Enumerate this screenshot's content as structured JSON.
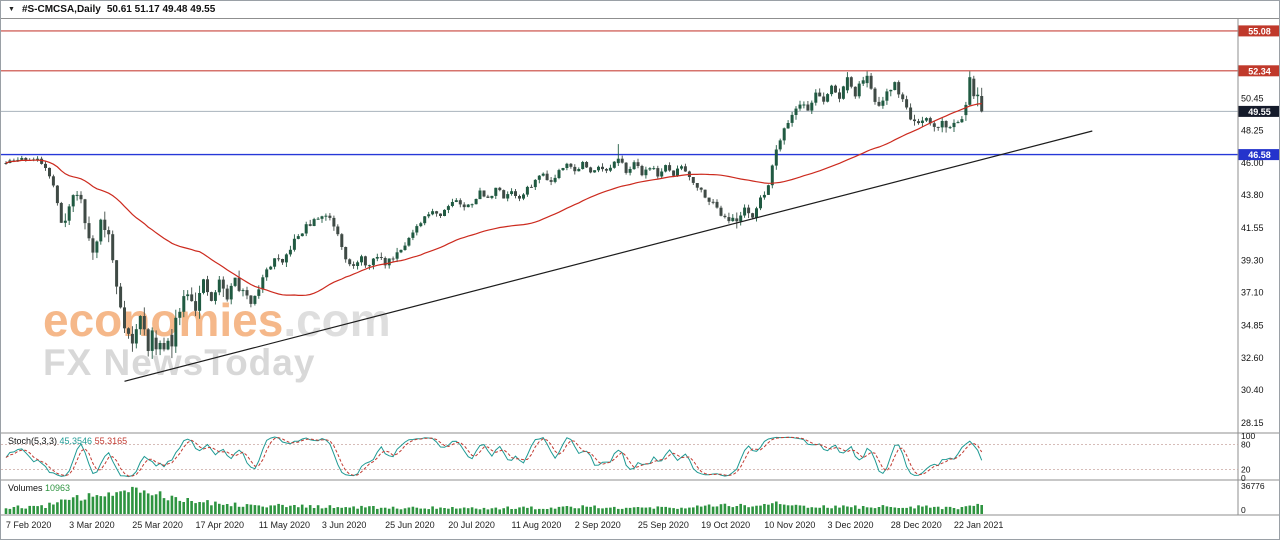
{
  "window": {
    "dropdown_icon": "▼",
    "title_symbol": "#S-CMCSA,Daily",
    "title_ohlc": "50.61 51.17 49.48 49.55"
  },
  "watermark": {
    "brand": "economies",
    "brand_suffix": ".com",
    "tagline": "FX NewsToday"
  },
  "chart_data": {
    "type": "candlestick",
    "symbol": "#S-CMCSA",
    "timeframe": "Daily",
    "ohlc_display": {
      "open": 50.61,
      "high": 51.17,
      "low": 49.48,
      "close": 49.55
    },
    "y_axis": {
      "ticks": [
        50.45,
        48.25,
        46.0,
        43.8,
        41.55,
        39.3,
        37.1,
        34.85,
        32.6,
        30.4,
        28.15
      ],
      "price_min": 27.45,
      "price_max": 55.9
    },
    "price_tags": [
      {
        "value": "55.08",
        "price": 55.08,
        "bg": "#c0392b"
      },
      {
        "value": "52.34",
        "price": 52.34,
        "bg": "#c0392b"
      },
      {
        "value": "49.55",
        "price": 49.55,
        "bg": "#141a2a"
      },
      {
        "value": "46.58",
        "price": 46.58,
        "bg": "#2433cc"
      }
    ],
    "hlines": [
      {
        "price": 55.08,
        "color": "#c8453c",
        "w": 1.1
      },
      {
        "price": 52.34,
        "color": "#c8453c",
        "w": 1.1
      },
      {
        "price": 49.55,
        "color": "#a8b2bc",
        "w": 1
      },
      {
        "price": 46.58,
        "color": "#2638d8",
        "w": 1.4
      }
    ],
    "trendline": {
      "from_bar": 30,
      "from_price": 31.0,
      "to_bar": 275,
      "to_price": 48.2,
      "color": "#1c1c1c"
    },
    "ma": {
      "period": 50,
      "color": "#cc2a1e"
    },
    "colors": {
      "bull": "#205a42",
      "bear": "#3f4a45"
    },
    "candles": {
      "count": 248,
      "seed": 11,
      "path": [
        [
          0,
          46.0
        ],
        [
          4,
          46.3
        ],
        [
          8,
          46.2
        ],
        [
          10,
          45.8
        ],
        [
          12,
          44.5
        ],
        [
          14,
          41.8
        ],
        [
          16,
          43.0
        ],
        [
          18,
          44.2
        ],
        [
          20,
          42.0
        ],
        [
          22,
          39.8
        ],
        [
          24,
          42.0
        ],
        [
          26,
          41.0
        ],
        [
          28,
          37.5
        ],
        [
          30,
          35.0
        ],
        [
          32,
          33.5
        ],
        [
          34,
          35.5
        ],
        [
          36,
          33.4
        ],
        [
          38,
          34.8
        ],
        [
          40,
          33.2
        ],
        [
          42,
          34.0
        ],
        [
          44,
          36.2
        ],
        [
          46,
          37.4
        ],
        [
          48,
          36.2
        ],
        [
          50,
          37.6
        ],
        [
          52,
          36.5
        ],
        [
          54,
          37.8
        ],
        [
          56,
          36.8
        ],
        [
          58,
          38.0
        ],
        [
          60,
          37.0
        ],
        [
          62,
          36.5
        ],
        [
          64,
          37.5
        ],
        [
          66,
          38.6
        ],
        [
          68,
          39.4
        ],
        [
          70,
          39.0
        ],
        [
          72,
          40.2
        ],
        [
          74,
          41.0
        ],
        [
          76,
          41.6
        ],
        [
          78,
          42.0
        ],
        [
          80,
          42.4
        ],
        [
          82,
          42.3
        ],
        [
          84,
          41.2
        ],
        [
          86,
          39.6
        ],
        [
          88,
          38.8
        ],
        [
          90,
          39.4
        ],
        [
          92,
          38.9
        ],
        [
          94,
          39.6
        ],
        [
          96,
          39.1
        ],
        [
          98,
          39.6
        ],
        [
          100,
          40.2
        ],
        [
          102,
          40.8
        ],
        [
          104,
          41.5
        ],
        [
          106,
          42.2
        ],
        [
          108,
          42.8
        ],
        [
          110,
          42.4
        ],
        [
          112,
          43.2
        ],
        [
          114,
          43.5
        ],
        [
          116,
          42.9
        ],
        [
          118,
          43.3
        ],
        [
          120,
          44.0
        ],
        [
          122,
          43.5
        ],
        [
          124,
          44.3
        ],
        [
          126,
          43.7
        ],
        [
          128,
          44.1
        ],
        [
          130,
          43.5
        ],
        [
          132,
          44.2
        ],
        [
          134,
          44.8
        ],
        [
          136,
          45.3
        ],
        [
          138,
          44.7
        ],
        [
          140,
          45.5
        ],
        [
          142,
          46.1
        ],
        [
          144,
          45.4
        ],
        [
          146,
          46.0
        ],
        [
          148,
          45.3
        ],
        [
          150,
          45.9
        ],
        [
          152,
          45.4
        ],
        [
          155,
          46.3
        ],
        [
          157,
          45.5
        ],
        [
          159,
          46.0
        ],
        [
          161,
          45.3
        ],
        [
          163,
          45.8
        ],
        [
          165,
          45.2
        ],
        [
          167,
          45.7
        ],
        [
          169,
          45.2
        ],
        [
          171,
          45.8
        ],
        [
          173,
          45.1
        ],
        [
          175,
          44.4
        ],
        [
          177,
          43.8
        ],
        [
          179,
          43.2
        ],
        [
          181,
          42.6
        ],
        [
          183,
          42.2
        ],
        [
          185,
          41.9
        ],
        [
          187,
          43.0
        ],
        [
          189,
          42.4
        ],
        [
          191,
          43.4
        ],
        [
          193,
          44.6
        ],
        [
          195,
          47.0
        ],
        [
          197,
          48.5
        ],
        [
          199,
          49.3
        ],
        [
          201,
          50.2
        ],
        [
          203,
          49.6
        ],
        [
          205,
          50.9
        ],
        [
          207,
          50.1
        ],
        [
          209,
          51.3
        ],
        [
          211,
          50.5
        ],
        [
          213,
          51.7
        ],
        [
          215,
          50.6
        ],
        [
          217,
          51.9
        ],
        [
          219,
          50.9
        ],
        [
          221,
          49.8
        ],
        [
          223,
          50.7
        ],
        [
          225,
          51.5
        ],
        [
          227,
          50.3
        ],
        [
          229,
          49.2
        ],
        [
          231,
          48.5
        ],
        [
          233,
          48.9
        ],
        [
          235,
          48.4
        ],
        [
          237,
          48.8
        ],
        [
          239,
          48.4
        ],
        [
          241,
          48.9
        ],
        [
          243,
          49.6
        ],
        [
          244,
          51.9
        ],
        [
          245,
          50.7
        ],
        [
          246,
          50.8
        ],
        [
          247,
          49.55
        ]
      ],
      "overrides": {
        "38": [
          34.0,
          34.5,
          32.8,
          33.2
        ],
        "42": [
          34.2,
          34.6,
          32.6,
          33.4
        ],
        "155": [
          46.0,
          47.3,
          45.8,
          46.3
        ],
        "185": [
          42.2,
          42.6,
          41.5,
          42.0
        ],
        "213": [
          51.0,
          52.25,
          50.8,
          51.9
        ],
        "218": [
          51.5,
          52.3,
          51.2,
          52.0
        ],
        "243": [
          49.3,
          50.2,
          48.9,
          50.0
        ],
        "244": [
          50.0,
          52.3,
          49.9,
          51.9
        ],
        "245": [
          51.8,
          52.0,
          50.4,
          50.6
        ],
        "246": [
          50.6,
          51.2,
          49.9,
          50.7
        ],
        "247": [
          50.61,
          51.17,
          49.48,
          49.55
        ]
      },
      "vol_zones": [
        [
          14,
          0.3
        ],
        [
          60,
          0.85
        ],
        [
          100,
          0.45
        ],
        [
          180,
          0.35
        ],
        [
          248,
          0.5
        ]
      ]
    },
    "stoch": {
      "label": "Stoch(5,3,3)",
      "value_main": "45.3546",
      "value_signal": "55.3165",
      "main_color": "#1f9a94",
      "signal_color": "#c23b32",
      "levels": [
        100,
        80,
        20,
        0
      ]
    },
    "volumes": {
      "label": "Volumes",
      "current": "10963",
      "scale_max": "36776",
      "scale_min": "0",
      "color": "#2e9440",
      "path": [
        [
          0,
          8000
        ],
        [
          10,
          10000
        ],
        [
          14,
          16000
        ],
        [
          20,
          20000
        ],
        [
          24,
          26000
        ],
        [
          28,
          31000
        ],
        [
          31,
          33000
        ],
        [
          34,
          30000
        ],
        [
          38,
          26000
        ],
        [
          42,
          22000
        ],
        [
          46,
          18000
        ],
        [
          52,
          14000
        ],
        [
          60,
          12000
        ],
        [
          70,
          10000
        ],
        [
          80,
          9000
        ],
        [
          90,
          8200
        ],
        [
          100,
          7600
        ],
        [
          110,
          8200
        ],
        [
          120,
          7200
        ],
        [
          130,
          7600
        ],
        [
          140,
          8200
        ],
        [
          146,
          10000
        ],
        [
          152,
          8600
        ],
        [
          160,
          7600
        ],
        [
          170,
          8200
        ],
        [
          178,
          9600
        ],
        [
          185,
          12000
        ],
        [
          190,
          9600
        ],
        [
          195,
          13000
        ],
        [
          200,
          10000
        ],
        [
          210,
          8600
        ],
        [
          220,
          8600
        ],
        [
          227,
          10000
        ],
        [
          235,
          8600
        ],
        [
          242,
          7600
        ],
        [
          245,
          11000
        ],
        [
          247,
          10963
        ]
      ]
    },
    "x_axis": {
      "labels": [
        "7 Feb 2020",
        "3 Mar 2020",
        "25 Mar 2020",
        "17 Apr 2020",
        "11 May 2020",
        "3 Jun 2020",
        "25 Jun 2020",
        "20 Jul 2020",
        "11 Aug 2020",
        "2 Sep 2020",
        "25 Sep 2020",
        "19 Oct 2020",
        "10 Nov 2020",
        "3 Dec 2020",
        "28 Dec 2020",
        "22 Jan 2021"
      ],
      "tick_bars": [
        2,
        18,
        34,
        50,
        66,
        82,
        98,
        114,
        130,
        146,
        162,
        178,
        194,
        210,
        226,
        242
      ]
    }
  }
}
